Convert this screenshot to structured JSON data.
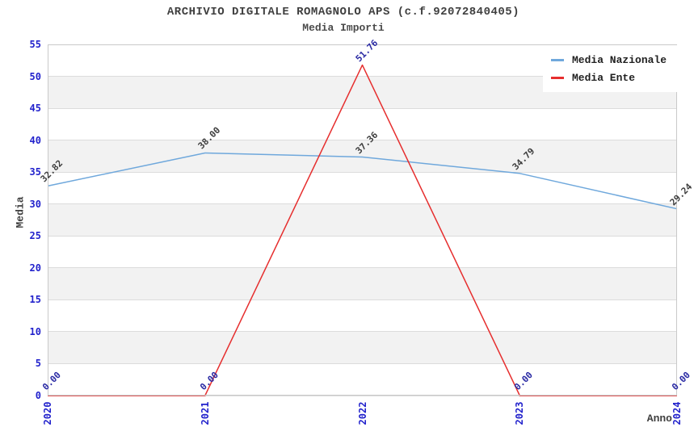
{
  "chart_data": {
    "type": "line",
    "title": "ARCHIVIO DIGITALE ROMAGNOLO APS (c.f.92072840405)",
    "subtitle": "Media Importi",
    "xlabel": "Anno",
    "ylabel": "Media",
    "x_categories": [
      "2020",
      "2021",
      "2022",
      "2023",
      "2024"
    ],
    "y_ticks": [
      0,
      5,
      10,
      15,
      20,
      25,
      30,
      35,
      40,
      45,
      50,
      55
    ],
    "ylim": [
      0,
      55
    ],
    "grid": "horizontal-bands-on",
    "legend_position": "top-right",
    "tick_color": "#2222cc",
    "band_color": "#f2f2f2",
    "series": [
      {
        "name": "Media Nazionale",
        "color": "#6fa8dc",
        "values": [
          32.82,
          38.0,
          37.36,
          34.79,
          29.24
        ],
        "labels": [
          "32.82",
          "38.00",
          "37.36",
          "34.79",
          "29.24"
        ],
        "label_color": "#3d3d3d"
      },
      {
        "name": "Media Ente",
        "color": "#e62e2e",
        "values": [
          0,
          0,
          51.76,
          0,
          0
        ],
        "labels": [
          "0.00",
          "0.00",
          "51.76",
          "0.00",
          "0.00"
        ],
        "label_color": "#2929a3"
      }
    ]
  }
}
